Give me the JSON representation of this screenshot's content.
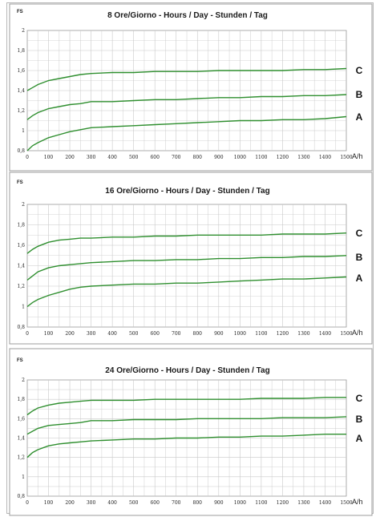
{
  "chart_data": [
    {
      "type": "line",
      "title": "8 Ore/Giorno - Hours / Day - Stunden / Tag",
      "ylabel": "FS",
      "xlabel": "A/h",
      "xlim": [
        0,
        1500
      ],
      "ylim": [
        0.8,
        2
      ],
      "grid": true,
      "line_color": "#2f8f2f",
      "x_ticks": [
        "0",
        "100",
        "200",
        "300",
        "400",
        "500",
        "600",
        "700",
        "800",
        "900",
        "1000",
        "1100",
        "1200",
        "1300",
        "1400",
        "1500"
      ],
      "y_ticks": [
        "0,8",
        "1",
        "1,2",
        "1,4",
        "1,6",
        "1,8",
        "2"
      ],
      "x": [
        0,
        25,
        50,
        100,
        150,
        200,
        250,
        300,
        400,
        500,
        600,
        700,
        800,
        900,
        1000,
        1100,
        1200,
        1300,
        1400,
        1500
      ],
      "series": [
        {
          "name": "C",
          "values": [
            1.4,
            1.43,
            1.46,
            1.5,
            1.52,
            1.54,
            1.56,
            1.57,
            1.58,
            1.58,
            1.59,
            1.59,
            1.59,
            1.6,
            1.6,
            1.6,
            1.6,
            1.61,
            1.61,
            1.62
          ]
        },
        {
          "name": "B",
          "values": [
            1.11,
            1.15,
            1.18,
            1.22,
            1.24,
            1.26,
            1.27,
            1.29,
            1.29,
            1.3,
            1.31,
            1.31,
            1.32,
            1.33,
            1.33,
            1.34,
            1.34,
            1.35,
            1.35,
            1.36
          ]
        },
        {
          "name": "A",
          "values": [
            0.8,
            0.85,
            0.88,
            0.93,
            0.96,
            0.99,
            1.01,
            1.03,
            1.04,
            1.05,
            1.06,
            1.07,
            1.08,
            1.09,
            1.1,
            1.1,
            1.11,
            1.11,
            1.12,
            1.14
          ]
        }
      ]
    },
    {
      "type": "line",
      "title": "16 Ore/Giorno - Hours / Day - Stunden / Tag",
      "ylabel": "FS",
      "xlabel": "A/h",
      "xlim": [
        0,
        1500
      ],
      "ylim": [
        0.8,
        2
      ],
      "grid": true,
      "line_color": "#2f8f2f",
      "x_ticks": [
        "0",
        "100",
        "200",
        "300",
        "400",
        "500",
        "600",
        "700",
        "800",
        "900",
        "1000",
        "1100",
        "1200",
        "1300",
        "1400",
        "1500"
      ],
      "y_ticks": [
        "0,8",
        "1",
        "1,2",
        "1,4",
        "1,6",
        "1,8",
        "2"
      ],
      "x": [
        0,
        25,
        50,
        100,
        150,
        200,
        250,
        300,
        400,
        500,
        600,
        700,
        800,
        900,
        1000,
        1100,
        1200,
        1300,
        1400,
        1500
      ],
      "series": [
        {
          "name": "C",
          "values": [
            1.52,
            1.56,
            1.59,
            1.63,
            1.65,
            1.66,
            1.67,
            1.67,
            1.68,
            1.68,
            1.69,
            1.69,
            1.7,
            1.7,
            1.7,
            1.7,
            1.71,
            1.71,
            1.71,
            1.72
          ]
        },
        {
          "name": "B",
          "values": [
            1.26,
            1.3,
            1.34,
            1.38,
            1.4,
            1.41,
            1.42,
            1.43,
            1.44,
            1.45,
            1.45,
            1.46,
            1.46,
            1.47,
            1.47,
            1.48,
            1.48,
            1.49,
            1.49,
            1.5
          ]
        },
        {
          "name": "A",
          "values": [
            1.0,
            1.04,
            1.07,
            1.11,
            1.14,
            1.17,
            1.19,
            1.2,
            1.21,
            1.22,
            1.22,
            1.23,
            1.23,
            1.24,
            1.25,
            1.26,
            1.27,
            1.27,
            1.28,
            1.29
          ]
        }
      ]
    },
    {
      "type": "line",
      "title": "24 Ore/Giorno - Hours / Day - Stunden / Tag",
      "ylabel": "FS",
      "xlabel": "A/h",
      "xlim": [
        0,
        1500
      ],
      "ylim": [
        0.8,
        2
      ],
      "grid": true,
      "line_color": "#2f8f2f",
      "x_ticks": [
        "0",
        "100",
        "200",
        "300",
        "400",
        "500",
        "600",
        "700",
        "800",
        "900",
        "1000",
        "1100",
        "1200",
        "1300",
        "1400",
        "1500"
      ],
      "y_ticks": [
        "0,8",
        "1",
        "1,2",
        "1,4",
        "1,6",
        "1,8",
        "2"
      ],
      "x": [
        0,
        25,
        50,
        100,
        150,
        200,
        250,
        300,
        400,
        500,
        600,
        700,
        800,
        900,
        1000,
        1100,
        1200,
        1300,
        1400,
        1500
      ],
      "series": [
        {
          "name": "C",
          "values": [
            1.64,
            1.68,
            1.71,
            1.74,
            1.76,
            1.77,
            1.78,
            1.79,
            1.79,
            1.79,
            1.8,
            1.8,
            1.8,
            1.8,
            1.8,
            1.81,
            1.81,
            1.81,
            1.82,
            1.82
          ]
        },
        {
          "name": "B",
          "values": [
            1.44,
            1.47,
            1.5,
            1.53,
            1.54,
            1.55,
            1.56,
            1.58,
            1.58,
            1.59,
            1.59,
            1.59,
            1.6,
            1.6,
            1.6,
            1.6,
            1.61,
            1.61,
            1.61,
            1.62
          ]
        },
        {
          "name": "A",
          "values": [
            1.2,
            1.25,
            1.28,
            1.32,
            1.34,
            1.35,
            1.36,
            1.37,
            1.38,
            1.39,
            1.39,
            1.4,
            1.4,
            1.41,
            1.41,
            1.42,
            1.42,
            1.43,
            1.44,
            1.44
          ]
        }
      ]
    }
  ]
}
